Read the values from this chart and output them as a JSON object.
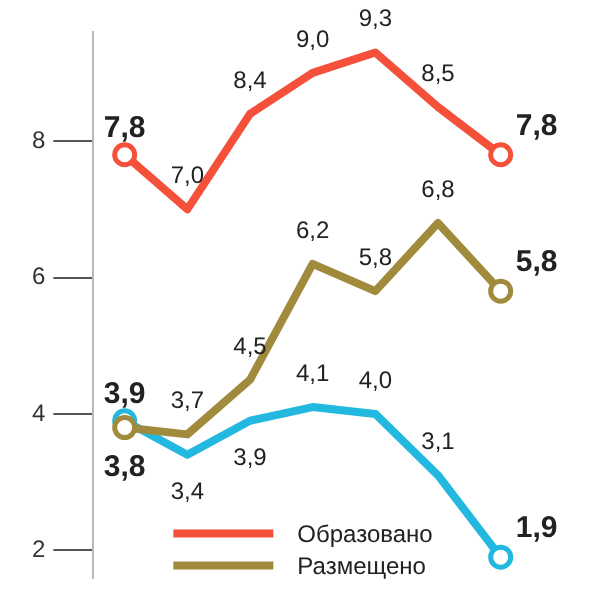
{
  "chart_data": {
    "type": "line",
    "categories": [
      null,
      null,
      null,
      null,
      null,
      null,
      null
    ],
    "series": [
      {
        "name": "Образовано",
        "color": "#f4503a",
        "values": [
          7.8,
          7.0,
          8.4,
          9.0,
          9.3,
          8.5,
          7.8
        ],
        "value_labels": [
          "7,8",
          "7,0",
          "8,4",
          "9,0",
          "9,3",
          "8,5",
          "7,8"
        ]
      },
      {
        "name": "Размещено",
        "color": "#a08a3c",
        "values": [
          3.8,
          3.7,
          4.5,
          6.2,
          5.8,
          6.8,
          5.8
        ],
        "value_labels": [
          "3,8",
          "3,7",
          "4,5",
          "6,2",
          "5,8",
          "6,8",
          "5,8"
        ]
      },
      {
        "color": "#22b8e0",
        "values": [
          3.9,
          3.4,
          3.9,
          4.1,
          4.0,
          3.1,
          1.9
        ],
        "value_labels": [
          "3,9",
          "3,4",
          "3,9",
          "4,1",
          "4,0",
          "3,1",
          "1,9"
        ]
      }
    ],
    "ylim": [
      1.6,
      9.6
    ],
    "yticks": [
      2,
      4,
      6,
      8
    ],
    "tick_labels": "y",
    "grid": false,
    "legend": "bottom",
    "line_style": "solid"
  }
}
